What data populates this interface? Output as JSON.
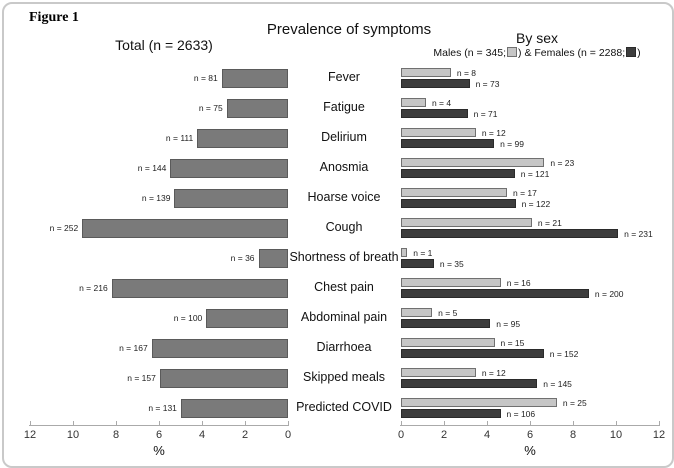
{
  "figure_label": "Figure 1",
  "title": "Prevalence of symptoms",
  "panels": {
    "left": {
      "title": "Total (n = 2633)"
    },
    "right": {
      "title": "By sex"
    }
  },
  "legend": {
    "males_part": "Males (n = 345;",
    "females_part": ") & Females (n = 2288;",
    "suffix": ")"
  },
  "colors": {
    "total_bar": "#7a7a7a",
    "total_border": "#5a5a5a",
    "male_bar": "#c6c6c6",
    "male_border": "#707070",
    "female_bar": "#3d3d3d",
    "female_border": "#2a2a2a",
    "axis": "#aaaaaa",
    "text": "#111111"
  },
  "chart_data": {
    "type": "bar",
    "orientation": "horizontal",
    "title": "Prevalence of symptoms",
    "xlabel": "%",
    "xlim": [
      0,
      12
    ],
    "left_axis_ticks": [
      12,
      10,
      8,
      6,
      4,
      2,
      0
    ],
    "right_axis_ticks": [
      0,
      2,
      4,
      6,
      8,
      10,
      12
    ],
    "left_axis_reversed": true,
    "bar_label_format": "n = {count}",
    "categories": [
      "Fever",
      "Fatigue",
      "Delirium",
      "Anosmia",
      "Hoarse voice",
      "Cough",
      "Shortness of breath",
      "Chest pain",
      "Abdominal pain",
      "Diarrhoea",
      "Skipped meals",
      "Predicted COVID"
    ],
    "series": [
      {
        "name": "Total",
        "n": 2633,
        "panel": "left",
        "counts": [
          81,
          75,
          111,
          144,
          139,
          252,
          36,
          216,
          100,
          167,
          157,
          131
        ],
        "percents": [
          3.08,
          2.85,
          4.22,
          5.47,
          5.28,
          9.57,
          1.37,
          8.2,
          3.8,
          6.34,
          5.96,
          4.98
        ]
      },
      {
        "name": "Males",
        "n": 345,
        "panel": "right",
        "counts": [
          8,
          4,
          12,
          23,
          17,
          21,
          1,
          16,
          5,
          15,
          12,
          25
        ],
        "percents": [
          2.32,
          1.16,
          3.48,
          6.67,
          4.93,
          6.09,
          0.29,
          4.64,
          1.45,
          4.35,
          3.48,
          7.25
        ]
      },
      {
        "name": "Females",
        "n": 2288,
        "panel": "right",
        "counts": [
          73,
          71,
          99,
          121,
          122,
          231,
          35,
          200,
          95,
          152,
          145,
          106
        ],
        "percents": [
          3.19,
          3.1,
          4.33,
          5.29,
          5.33,
          10.1,
          1.53,
          8.74,
          4.15,
          6.64,
          6.34,
          4.63
        ]
      }
    ]
  }
}
